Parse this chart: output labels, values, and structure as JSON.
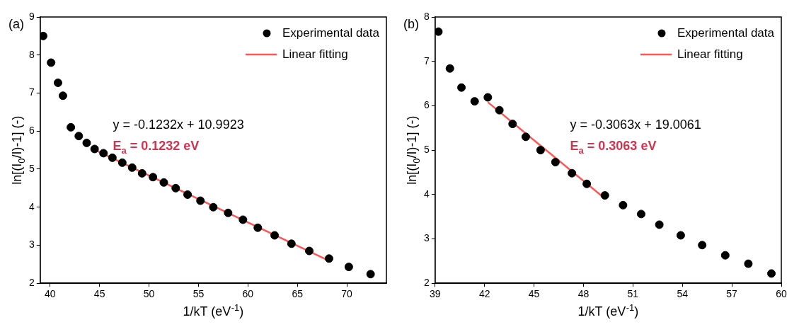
{
  "chart_data": [
    {
      "type": "scatter",
      "title": "(a)",
      "xlabel": "1/kT (eV$^{-1}$)",
      "ylabel": "ln[(I$_{0}$/I)-1] (-)",
      "xlim": [
        39,
        74
      ],
      "xticks": [
        40,
        45,
        50,
        55,
        60,
        65,
        70
      ],
      "ylim": [
        2,
        9
      ],
      "yticks": [
        2,
        3,
        4,
        5,
        6,
        7,
        8,
        9
      ],
      "grid": false,
      "legend": "top right",
      "annotations": [
        "y = -0.1232x + 10.9923",
        "E$_{a}$ = 0.1232 eV"
      ],
      "series": [
        {
          "name": "Experimental data",
          "marker": "circle",
          "color": "#000000",
          "x": [
            39.3,
            40.1,
            40.8,
            41.3,
            42.1,
            42.9,
            43.7,
            44.5,
            45.4,
            46.3,
            47.3,
            48.3,
            49.3,
            50.4,
            51.5,
            52.7,
            53.9,
            55.2,
            56.5,
            58.0,
            59.5,
            61.0,
            62.7,
            64.4,
            66.2,
            68.2,
            70.2,
            72.4
          ],
          "values": [
            8.5,
            7.8,
            7.27,
            6.93,
            6.1,
            5.87,
            5.69,
            5.53,
            5.42,
            5.3,
            5.17,
            5.04,
            4.89,
            4.79,
            4.65,
            4.5,
            4.33,
            4.17,
            4.0,
            3.85,
            3.67,
            3.46,
            3.26,
            3.04,
            2.85,
            2.65,
            2.43,
            2.24
          ]
        },
        {
          "name": "Linear fitting",
          "type": "line",
          "color": "#ff5555",
          "line_style": "solid",
          "marker": "none",
          "x": [
            44.5,
            68.2
          ],
          "values": [
            5.51,
            2.59
          ]
        }
      ]
    },
    {
      "type": "scatter",
      "title": "(b)",
      "xlabel": "1/kT (eV$^{-1}$)",
      "ylabel": "ln[(I$_{0}$/I)-1] (-)",
      "xlim": [
        39,
        60
      ],
      "xticks": [
        39,
        42,
        45,
        48,
        51,
        54,
        57,
        60
      ],
      "ylim": [
        2,
        8
      ],
      "yticks": [
        2,
        3,
        4,
        5,
        6,
        7,
        8
      ],
      "grid": false,
      "legend": "top right",
      "annotations": [
        "y = -0.3063x + 19.0061",
        "E$_{a}$ = 0.3063 eV"
      ],
      "series": [
        {
          "name": "Experimental data",
          "marker": "circle",
          "color": "#000000",
          "x": [
            39.2,
            39.9,
            40.6,
            41.4,
            42.2,
            42.9,
            43.7,
            44.5,
            45.4,
            46.3,
            47.3,
            48.2,
            49.3,
            50.4,
            51.5,
            52.6,
            53.9,
            55.2,
            56.6,
            58.0,
            59.4
          ],
          "values": [
            7.67,
            6.84,
            6.41,
            6.1,
            6.19,
            5.9,
            5.59,
            5.3,
            5.0,
            4.73,
            4.48,
            4.24,
            3.98,
            3.76,
            3.56,
            3.32,
            3.08,
            2.86,
            2.63,
            2.44,
            2.22
          ]
        },
        {
          "name": "Linear fitting",
          "type": "line",
          "color": "#ff5555",
          "line_style": "solid",
          "marker": "none",
          "x": [
            42.2,
            49.3
          ],
          "values": [
            6.08,
            3.91
          ]
        }
      ]
    }
  ]
}
